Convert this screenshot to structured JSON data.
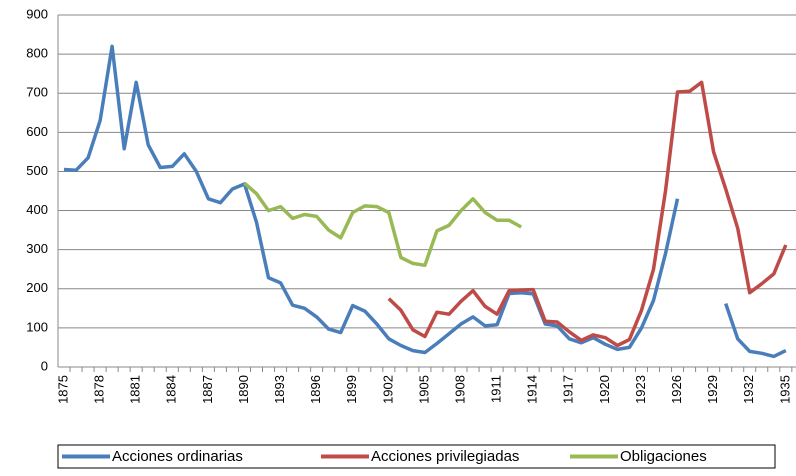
{
  "chart_data": {
    "type": "line",
    "categories": [
      "1875",
      null,
      null,
      "1878",
      null,
      null,
      "1881",
      null,
      null,
      "1884",
      null,
      null,
      "1887",
      null,
      null,
      "1890",
      null,
      null,
      "1893",
      null,
      null,
      "1896",
      null,
      null,
      "1899",
      null,
      null,
      "1902",
      null,
      null,
      "1905",
      null,
      null,
      "1908",
      null,
      null,
      "1911",
      null,
      null,
      "1914",
      null,
      null,
      "1917",
      null,
      null,
      "1920",
      null,
      null,
      "1923",
      null,
      null,
      "1926",
      null,
      null,
      "1929",
      null,
      null,
      "1932",
      null,
      null,
      "1935"
    ],
    "series": [
      {
        "name": "Acciones ordinarias",
        "color": "#4a7ebb",
        "values": [
          505,
          503,
          535,
          630,
          820,
          558,
          728,
          568,
          510,
          513,
          545,
          500,
          430,
          420,
          455,
          468,
          370,
          228,
          215,
          158,
          150,
          128,
          97,
          88,
          157,
          143,
          110,
          72,
          55,
          42,
          37,
          60,
          85,
          110,
          128,
          105,
          108,
          188,
          190,
          187,
          110,
          105,
          72,
          62,
          75,
          58,
          45,
          50,
          100,
          170,
          290,
          430,
          null,
          null,
          null,
          162,
          72,
          40,
          35,
          27,
          42
        ]
      },
      {
        "name": "Acciones privilegiadas",
        "color": "#be4b48",
        "values": [
          null,
          null,
          null,
          null,
          null,
          null,
          null,
          null,
          null,
          null,
          null,
          null,
          null,
          null,
          null,
          null,
          null,
          null,
          null,
          null,
          null,
          null,
          null,
          null,
          null,
          null,
          null,
          175,
          145,
          95,
          78,
          140,
          135,
          168,
          195,
          155,
          135,
          195,
          197,
          198,
          117,
          115,
          90,
          68,
          82,
          75,
          55,
          70,
          145,
          250,
          450,
          703,
          705,
          728,
          550,
          455,
          355,
          190,
          213,
          238,
          312
        ]
      },
      {
        "name": "Obligaciones",
        "color": "#98b954",
        "values": [
          null,
          null,
          null,
          null,
          null,
          null,
          null,
          null,
          null,
          null,
          null,
          null,
          null,
          null,
          null,
          470,
          443,
          400,
          410,
          380,
          390,
          385,
          350,
          330,
          395,
          412,
          410,
          395,
          280,
          265,
          260,
          348,
          362,
          400,
          430,
          395,
          375,
          375,
          358,
          null,
          null,
          null,
          null,
          null,
          null,
          null,
          null,
          null,
          null,
          null,
          null,
          null,
          null,
          null,
          null,
          null,
          null,
          null,
          null,
          null,
          null
        ]
      }
    ],
    "ylim": [
      0,
      900
    ],
    "yticks": [
      0,
      100,
      200,
      300,
      400,
      500,
      600,
      700,
      800,
      900
    ],
    "grid": true,
    "legend": "bottom"
  }
}
